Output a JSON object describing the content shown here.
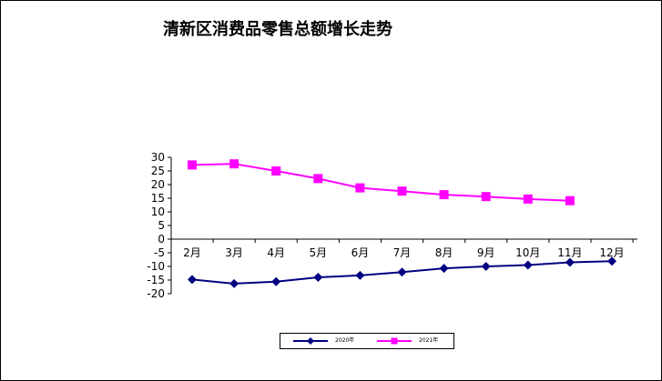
{
  "chart_data": {
    "type": "line",
    "title": "清新区消费品零售总额增长走势",
    "xlabel": "",
    "ylabel": "",
    "categories": [
      "2月",
      "3月",
      "4月",
      "5月",
      "6月",
      "7月",
      "8月",
      "9月",
      "10月",
      "11月",
      "12月"
    ],
    "ylim": [
      -20,
      30
    ],
    "yticks": [
      "30",
      "25",
      "20",
      "15",
      "10",
      "5",
      "0",
      "-5",
      "-10",
      "-15",
      "-20"
    ],
    "grid": false,
    "legend_position": "bottom",
    "series": [
      {
        "name": "2020年",
        "color": "#000080",
        "marker": "diamond",
        "values": [
          -14.8,
          -16.3,
          -15.6,
          -14.0,
          -13.3,
          -12.1,
          -10.7,
          -10.0,
          -9.5,
          -8.5,
          -8.1
        ]
      },
      {
        "name": "2021年",
        "color": "#ff00ff",
        "marker": "square",
        "values": [
          27.2,
          27.6,
          25.0,
          22.2,
          18.8,
          17.6,
          16.3,
          15.6,
          14.7,
          14.1,
          null
        ]
      }
    ]
  }
}
